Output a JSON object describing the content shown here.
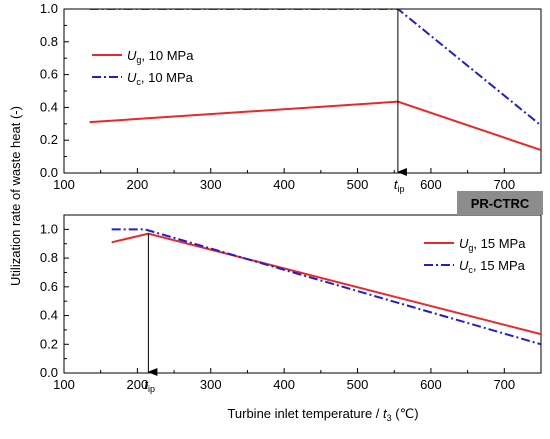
{
  "colors": {
    "ug": "#e8282a",
    "uc": "#1f1fd0",
    "badge_bg": "#8c8c8c",
    "axis": "#000000"
  },
  "badge": {
    "label": "PR-CTRC"
  },
  "shared": {
    "ylabel": "Utilization rate of waste heat (-)",
    "xlabel_prefix": "Turbine inlet temperature / ",
    "xlabel_symbol": "t",
    "xlabel_sub": "3",
    "xlabel_unit": " (℃)"
  },
  "chart_data": [
    {
      "type": "line",
      "xlim": [
        100,
        750
      ],
      "ylim": [
        0.0,
        1.0
      ],
      "x_ticks": [
        "100",
        "200",
        "300",
        "400",
        "500",
        "600",
        "700"
      ],
      "y_ticks": [
        "0.0",
        "0.2",
        "0.4",
        "0.6",
        "0.8",
        "1.0"
      ],
      "legend_position": "left-middle",
      "series": [
        {
          "key": "ug",
          "symbol": "U",
          "sub": "g",
          "suffix": ", 10 MPa",
          "style": "solid",
          "x": [
            135,
            555,
            750
          ],
          "y": [
            0.31,
            0.435,
            0.14
          ]
        },
        {
          "key": "uc",
          "symbol": "U",
          "sub": "c",
          "suffix": ", 10 MPa",
          "style": "dashdot",
          "x": [
            135,
            555,
            750
          ],
          "y": [
            1.0,
            1.0,
            0.29
          ]
        }
      ],
      "annotation": {
        "symbol": "t",
        "sub": "ip",
        "x": 555,
        "y_from": 1.0,
        "y_to": 0.0
      }
    },
    {
      "type": "line",
      "xlim": [
        100,
        750
      ],
      "ylim": [
        0.0,
        1.1
      ],
      "x_ticks": [
        "100",
        "200",
        "300",
        "400",
        "500",
        "600",
        "700"
      ],
      "y_ticks": [
        "0.0",
        "0.2",
        "0.4",
        "0.6",
        "0.8",
        "1.0"
      ],
      "legend_position": "right-middle",
      "series": [
        {
          "key": "ug",
          "symbol": "U",
          "sub": "g",
          "suffix": ", 15 MPa",
          "style": "solid",
          "x": [
            165,
            215,
            750
          ],
          "y": [
            0.91,
            0.97,
            0.27
          ]
        },
        {
          "key": "uc",
          "symbol": "U",
          "sub": "c",
          "suffix": ", 15 MPa",
          "style": "dashdot",
          "x": [
            165,
            210,
            750
          ],
          "y": [
            1.0,
            1.0,
            0.2
          ]
        }
      ],
      "annotation": {
        "symbol": "t",
        "sub": "ip",
        "x": 215,
        "y_from": 0.97,
        "y_to": 0.0
      }
    }
  ]
}
